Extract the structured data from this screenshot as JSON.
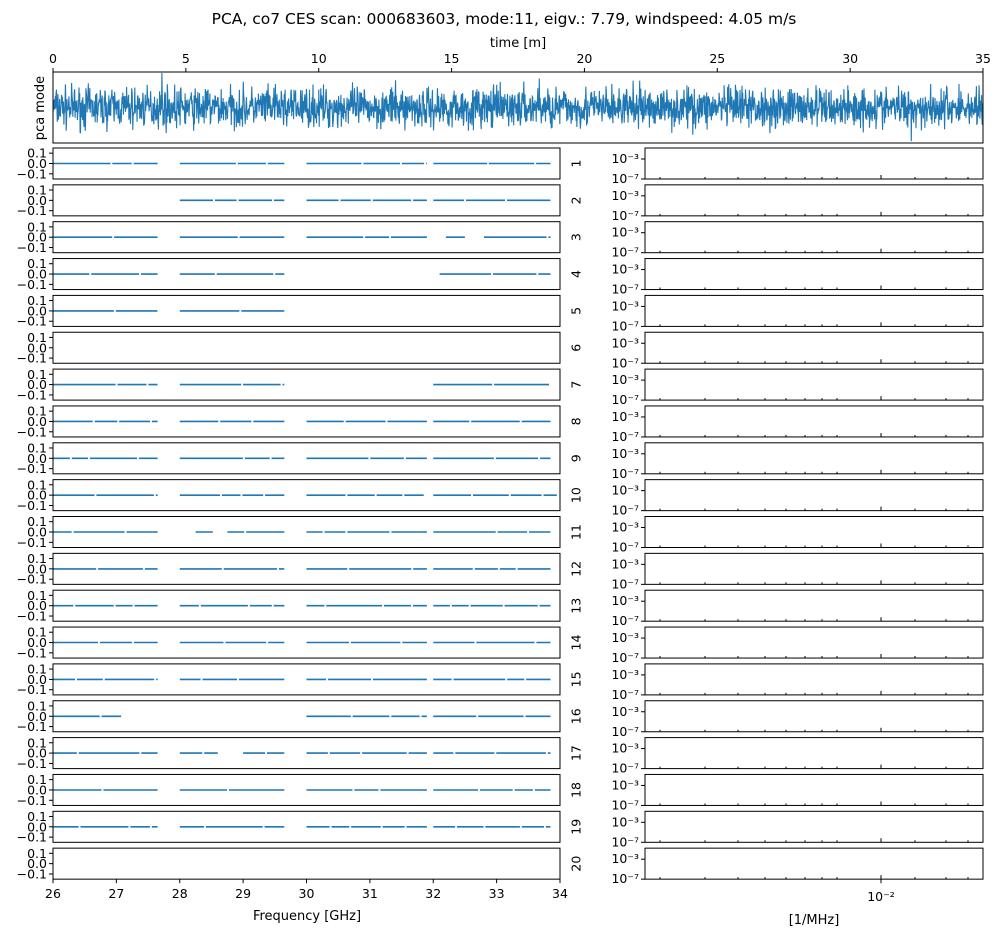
{
  "figure": {
    "title": "PCA, co7 CES scan: 000683603, mode:11, eigv.: 7.79, windspeed: 4.05 m/s",
    "series_color": "#1f77b4"
  },
  "chart_data": [
    {
      "type": "line",
      "panel": "time-stream",
      "title": "",
      "xlabel": "time [m]",
      "ylabel": "pca mode",
      "xlim": [
        0,
        35
      ],
      "xticks": [
        "0",
        "5",
        "10",
        "15",
        "20",
        "25",
        "30",
        "35"
      ],
      "description_values": {
        "noise_level": 0.65,
        "spikes": [
          {
            "x": 4.1,
            "y": 1.6
          },
          {
            "x": 18.3,
            "y": 0.95
          },
          {
            "x": 32.3,
            "y": -1.1
          }
        ]
      }
    },
    {
      "type": "line",
      "panel": "frequency-components",
      "xlabel": "Frequency [GHz]",
      "xlim": [
        26,
        34
      ],
      "ylim": [
        -0.15,
        0.15
      ],
      "xticks": [
        "26",
        "27",
        "28",
        "29",
        "30",
        "31",
        "32",
        "33",
        "34"
      ],
      "yticks": [
        "0.1",
        "0.0",
        "−0.1"
      ],
      "series": [
        {
          "name": "1",
          "y": 0.0,
          "segments": [
            [
              26.0,
              27.65
            ],
            [
              28.0,
              29.65
            ],
            [
              30.0,
              31.9
            ],
            [
              32.0,
              33.85
            ]
          ]
        },
        {
          "name": "2",
          "y": 0.0,
          "segments": [
            [
              28.0,
              29.65
            ],
            [
              30.0,
              31.9
            ],
            [
              32.0,
              33.85
            ]
          ]
        },
        {
          "name": "3",
          "y": 0.0,
          "segments": [
            [
              26.0,
              27.65
            ],
            [
              28.0,
              29.65
            ],
            [
              30.0,
              31.9
            ],
            [
              32.2,
              32.5
            ],
            [
              32.8,
              33.85
            ]
          ]
        },
        {
          "name": "4",
          "y": 0.0,
          "segments": [
            [
              26.0,
              27.65
            ],
            [
              28.0,
              29.65
            ],
            [
              32.1,
              33.85
            ]
          ]
        },
        {
          "name": "5",
          "y": 0.0,
          "segments": [
            [
              26.0,
              27.65
            ],
            [
              28.0,
              29.65
            ]
          ]
        },
        {
          "name": "6",
          "y": 0.0,
          "segments": []
        },
        {
          "name": "7",
          "y": 0.0,
          "segments": [
            [
              26.0,
              27.65
            ],
            [
              28.0,
              29.65
            ],
            [
              32.0,
              33.85
            ]
          ]
        },
        {
          "name": "8",
          "y": 0.0,
          "segments": [
            [
              26.0,
              27.65
            ],
            [
              28.0,
              29.65
            ],
            [
              30.0,
              31.9
            ],
            [
              32.0,
              33.85
            ]
          ]
        },
        {
          "name": "9",
          "y": 0.0,
          "segments": [
            [
              26.0,
              27.65
            ],
            [
              28.0,
              29.65
            ],
            [
              30.0,
              31.9
            ],
            [
              32.0,
              33.85
            ]
          ]
        },
        {
          "name": "10",
          "y": 0.0,
          "segments": [
            [
              26.0,
              27.65
            ],
            [
              28.0,
              29.65
            ],
            [
              30.0,
              31.85
            ],
            [
              32.0,
              33.95
            ]
          ]
        },
        {
          "name": "11",
          "y": 0.0,
          "segments": [
            [
              26.0,
              27.65
            ],
            [
              28.25,
              28.55
            ],
            [
              28.75,
              29.65
            ],
            [
              30.0,
              31.9
            ],
            [
              32.0,
              33.85
            ]
          ]
        },
        {
          "name": "12",
          "y": 0.0,
          "segments": [
            [
              26.0,
              27.65
            ],
            [
              28.0,
              29.65
            ],
            [
              30.0,
              31.9
            ],
            [
              32.0,
              33.85
            ]
          ]
        },
        {
          "name": "13",
          "y": 0.0,
          "segments": [
            [
              26.0,
              27.65
            ],
            [
              28.0,
              29.65
            ],
            [
              30.0,
              31.9
            ],
            [
              32.0,
              33.85
            ]
          ]
        },
        {
          "name": "14",
          "y": 0.0,
          "segments": [
            [
              26.0,
              27.65
            ],
            [
              28.0,
              29.65
            ],
            [
              30.0,
              31.9
            ],
            [
              32.0,
              33.85
            ]
          ]
        },
        {
          "name": "15",
          "y": 0.0,
          "segments": [
            [
              26.0,
              27.65
            ],
            [
              28.0,
              29.65
            ],
            [
              30.0,
              31.9
            ],
            [
              32.0,
              33.85
            ]
          ]
        },
        {
          "name": "16",
          "y": 0.0,
          "segments": [
            [
              26.0,
              27.1
            ],
            [
              30.0,
              31.9
            ],
            [
              32.0,
              33.85
            ]
          ]
        },
        {
          "name": "17",
          "y": 0.0,
          "segments": [
            [
              26.0,
              27.65
            ],
            [
              28.0,
              28.6
            ],
            [
              29.0,
              29.65
            ],
            [
              30.0,
              31.9
            ],
            [
              32.0,
              33.85
            ]
          ]
        },
        {
          "name": "18",
          "y": 0.0,
          "segments": [
            [
              26.0,
              27.65
            ],
            [
              28.0,
              29.65
            ],
            [
              30.0,
              31.9
            ],
            [
              32.0,
              33.85
            ]
          ]
        },
        {
          "name": "19",
          "y": 0.0,
          "segments": [
            [
              26.0,
              27.65
            ],
            [
              28.0,
              29.65
            ],
            [
              30.0,
              31.9
            ],
            [
              32.0,
              33.85
            ]
          ]
        },
        {
          "name": "20",
          "y": 0.0,
          "segments": []
        }
      ]
    },
    {
      "type": "line",
      "panel": "power-spectra",
      "xlabel": "[1/MHz]",
      "xscale": "log",
      "yscale": "log",
      "xticks": [
        "10⁻²"
      ],
      "yticks": [
        "10⁻³",
        "10⁻⁷"
      ],
      "series": [
        {
          "name": "1",
          "values": []
        },
        {
          "name": "2",
          "values": []
        },
        {
          "name": "3",
          "values": []
        },
        {
          "name": "4",
          "values": []
        },
        {
          "name": "5",
          "values": []
        },
        {
          "name": "6",
          "values": []
        },
        {
          "name": "7",
          "values": []
        },
        {
          "name": "8",
          "values": []
        },
        {
          "name": "9",
          "values": []
        },
        {
          "name": "10",
          "values": []
        },
        {
          "name": "11",
          "values": []
        },
        {
          "name": "12",
          "values": []
        },
        {
          "name": "13",
          "values": []
        },
        {
          "name": "14",
          "values": []
        },
        {
          "name": "15",
          "values": []
        },
        {
          "name": "16",
          "values": []
        },
        {
          "name": "17",
          "values": []
        },
        {
          "name": "18",
          "values": []
        },
        {
          "name": "19",
          "values": []
        },
        {
          "name": "20",
          "values": []
        }
      ]
    }
  ]
}
